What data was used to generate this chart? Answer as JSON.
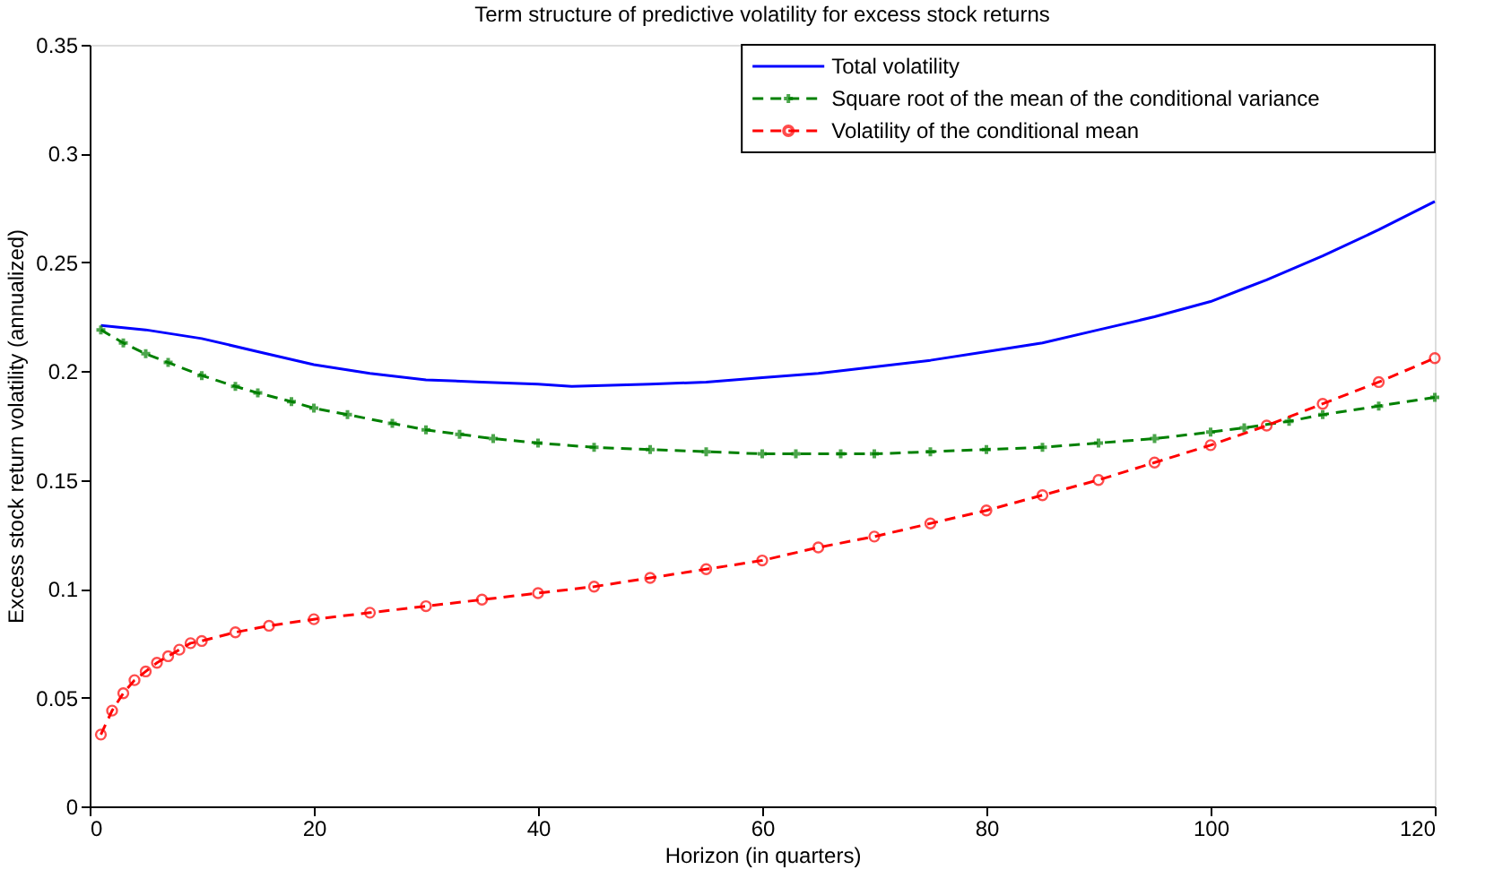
{
  "chart_data": {
    "type": "line",
    "title": "Term structure of predictive volatility for excess stock returns",
    "xlabel": "Horizon (in quarters)",
    "ylabel": "Excess stock return volatility (annualized)",
    "xlim": [
      0,
      120
    ],
    "xticks": [
      0,
      20,
      40,
      60,
      80,
      100,
      120
    ],
    "ylim": [
      0,
      0.35
    ],
    "yticks": [
      0,
      0.05,
      0.1,
      0.15,
      0.2,
      0.25,
      0.3,
      0.35
    ],
    "grid": false,
    "legend": "top right",
    "series": [
      {
        "name": "Total volatility",
        "color": "#0000ff",
        "marker": "none",
        "line_style": "solid",
        "x": [
          1,
          5,
          10,
          15,
          20,
          25,
          30,
          35,
          40,
          43,
          50,
          55,
          60,
          65,
          70,
          75,
          80,
          85,
          90,
          95,
          100,
          103,
          105,
          110,
          115,
          120
        ],
        "values": [
          0.221,
          0.219,
          0.215,
          0.209,
          0.203,
          0.199,
          0.196,
          0.195,
          0.194,
          0.193,
          0.194,
          0.195,
          0.197,
          0.199,
          0.202,
          0.205,
          0.209,
          0.213,
          0.219,
          0.225,
          0.232,
          0.238,
          0.242,
          0.253,
          0.265,
          0.278
        ]
      },
      {
        "name": "Square root of the mean of the conditional variance",
        "color": "#008000",
        "marker": "cross",
        "line_style": "dashed",
        "x": [
          1,
          3,
          5,
          7,
          10,
          13,
          15,
          18,
          20,
          23,
          27,
          30,
          33,
          36,
          40,
          45,
          50,
          55,
          60,
          63,
          67,
          70,
          75,
          80,
          85,
          90,
          95,
          100,
          103,
          107,
          110,
          115,
          120
        ],
        "values": [
          0.219,
          0.213,
          0.208,
          0.204,
          0.198,
          0.193,
          0.19,
          0.186,
          0.183,
          0.18,
          0.176,
          0.173,
          0.171,
          0.169,
          0.167,
          0.165,
          0.164,
          0.163,
          0.162,
          0.162,
          0.162,
          0.162,
          0.163,
          0.164,
          0.165,
          0.167,
          0.169,
          0.172,
          0.174,
          0.177,
          0.18,
          0.184,
          0.188
        ]
      },
      {
        "name": "Volatility of the conditional mean",
        "color": "#ff0000",
        "marker": "circle",
        "line_style": "dashed",
        "x": [
          1,
          2,
          3,
          4,
          5,
          6,
          7,
          8,
          9,
          10,
          13,
          16,
          20,
          25,
          30,
          35,
          40,
          45,
          50,
          55,
          60,
          65,
          70,
          75,
          80,
          85,
          90,
          95,
          100,
          105,
          110,
          115,
          120
        ],
        "values": [
          0.033,
          0.044,
          0.052,
          0.058,
          0.062,
          0.066,
          0.069,
          0.072,
          0.075,
          0.076,
          0.08,
          0.083,
          0.086,
          0.089,
          0.092,
          0.095,
          0.098,
          0.101,
          0.105,
          0.109,
          0.113,
          0.119,
          0.124,
          0.13,
          0.136,
          0.143,
          0.15,
          0.158,
          0.166,
          0.175,
          0.185,
          0.195,
          0.206
        ]
      }
    ]
  }
}
